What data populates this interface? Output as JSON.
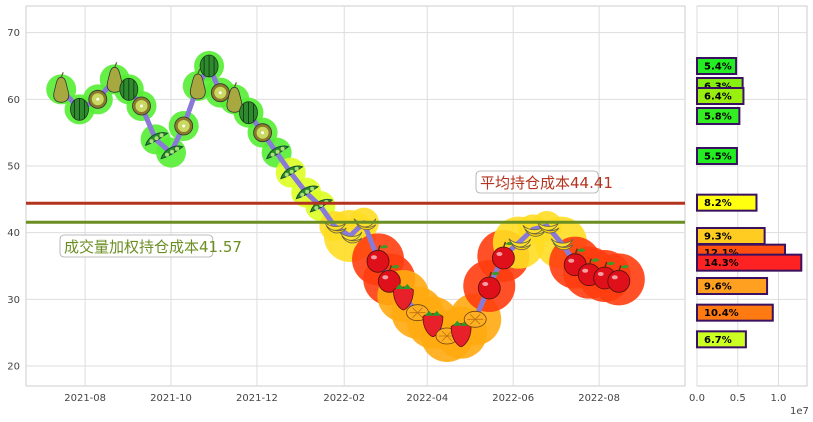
{
  "chart_data": [
    {
      "type": "line",
      "x_ticks": [
        "2021-08",
        "2021-10",
        "2021-12",
        "2022-02",
        "2022-04",
        "2022-06",
        "2022-08"
      ],
      "y_ticks": [
        "20",
        "30",
        "40",
        "50",
        "60",
        "70"
      ],
      "ylim": [
        17,
        74
      ],
      "grid": true,
      "series": [
        {
          "x": [
            "2021-07-15",
            "2021-07-28",
            "2021-08-10",
            "2021-08-22",
            "2021-09-01",
            "2021-09-10",
            "2021-09-20",
            "2021-10-01",
            "2021-10-10",
            "2021-10-20",
            "2021-10-28",
            "2021-11-05",
            "2021-11-15",
            "2021-11-25",
            "2021-12-05",
            "2021-12-15",
            "2021-12-25",
            "2022-01-05",
            "2022-01-15",
            "2022-01-25",
            "2022-02-05",
            "2022-02-15",
            "2022-02-25",
            "2022-03-05",
            "2022-03-15",
            "2022-03-25",
            "2022-04-05",
            "2022-04-15",
            "2022-04-25",
            "2022-05-05",
            "2022-05-15",
            "2022-05-25",
            "2022-06-05",
            "2022-06-15",
            "2022-06-25",
            "2022-07-05",
            "2022-07-15",
            "2022-07-25",
            "2022-08-05",
            "2022-08-15"
          ],
          "y": [
            61.5,
            58.5,
            60,
            63,
            61.5,
            59,
            54,
            52,
            56,
            62,
            65,
            61,
            60,
            58,
            55,
            52,
            49,
            46,
            44,
            41,
            39.5,
            41.5,
            36,
            33,
            30.5,
            28,
            26.5,
            24.5,
            25,
            27,
            32,
            36.5,
            38.5,
            40.5,
            41,
            38.5,
            35.5,
            34,
            33.5,
            33
          ]
        }
      ],
      "avg_lines": [
        {
          "label": "平均持仓成本44.41",
          "value": 44.41,
          "color": "#b3331e"
        },
        {
          "label": "成交量加权持仓成本41.57",
          "value": 41.57,
          "color": "#6b8e23"
        }
      ]
    },
    {
      "type": "bar",
      "orientation": "horizontal",
      "x_ticks": [
        "0.0",
        "0.5",
        "1.0"
      ],
      "x_exponent": "1e7",
      "xlim": [
        0,
        13500000.0
      ],
      "bars": [
        {
          "price": 65,
          "value": 4800000.0,
          "label": "5.4%",
          "color": "#22ee22"
        },
        {
          "price": 62,
          "value": 5600000.0,
          "label": "6.3%",
          "color": "#88f010"
        },
        {
          "price": 60.5,
          "value": 5700000.0,
          "label": "6.4%",
          "color": "#99f010"
        },
        {
          "price": 57.5,
          "value": 5200000.0,
          "label": "5.8%",
          "color": "#33ee22"
        },
        {
          "price": 51.5,
          "value": 4900000.0,
          "label": "5.5%",
          "color": "#22ee22"
        },
        {
          "price": 44.5,
          "value": 7300000.0,
          "label": "8.2%",
          "color": "#ffff10"
        },
        {
          "price": 39.5,
          "value": 8300000.0,
          "label": "9.3%",
          "color": "#ffcc22"
        },
        {
          "price": 37,
          "value": 10800000.0,
          "label": "12.1%",
          "color": "#ff5010"
        },
        {
          "price": 35.5,
          "value": 12800000.0,
          "label": "14.3%",
          "color": "#ff2222"
        },
        {
          "price": 32,
          "value": 8600000.0,
          "label": "9.6%",
          "color": "#ffa020"
        },
        {
          "price": 28,
          "value": 9300000.0,
          "label": "10.4%",
          "color": "#ff7a10"
        },
        {
          "price": 24,
          "value": 6000000.0,
          "label": "6.7%",
          "color": "#ccff22"
        }
      ]
    }
  ]
}
